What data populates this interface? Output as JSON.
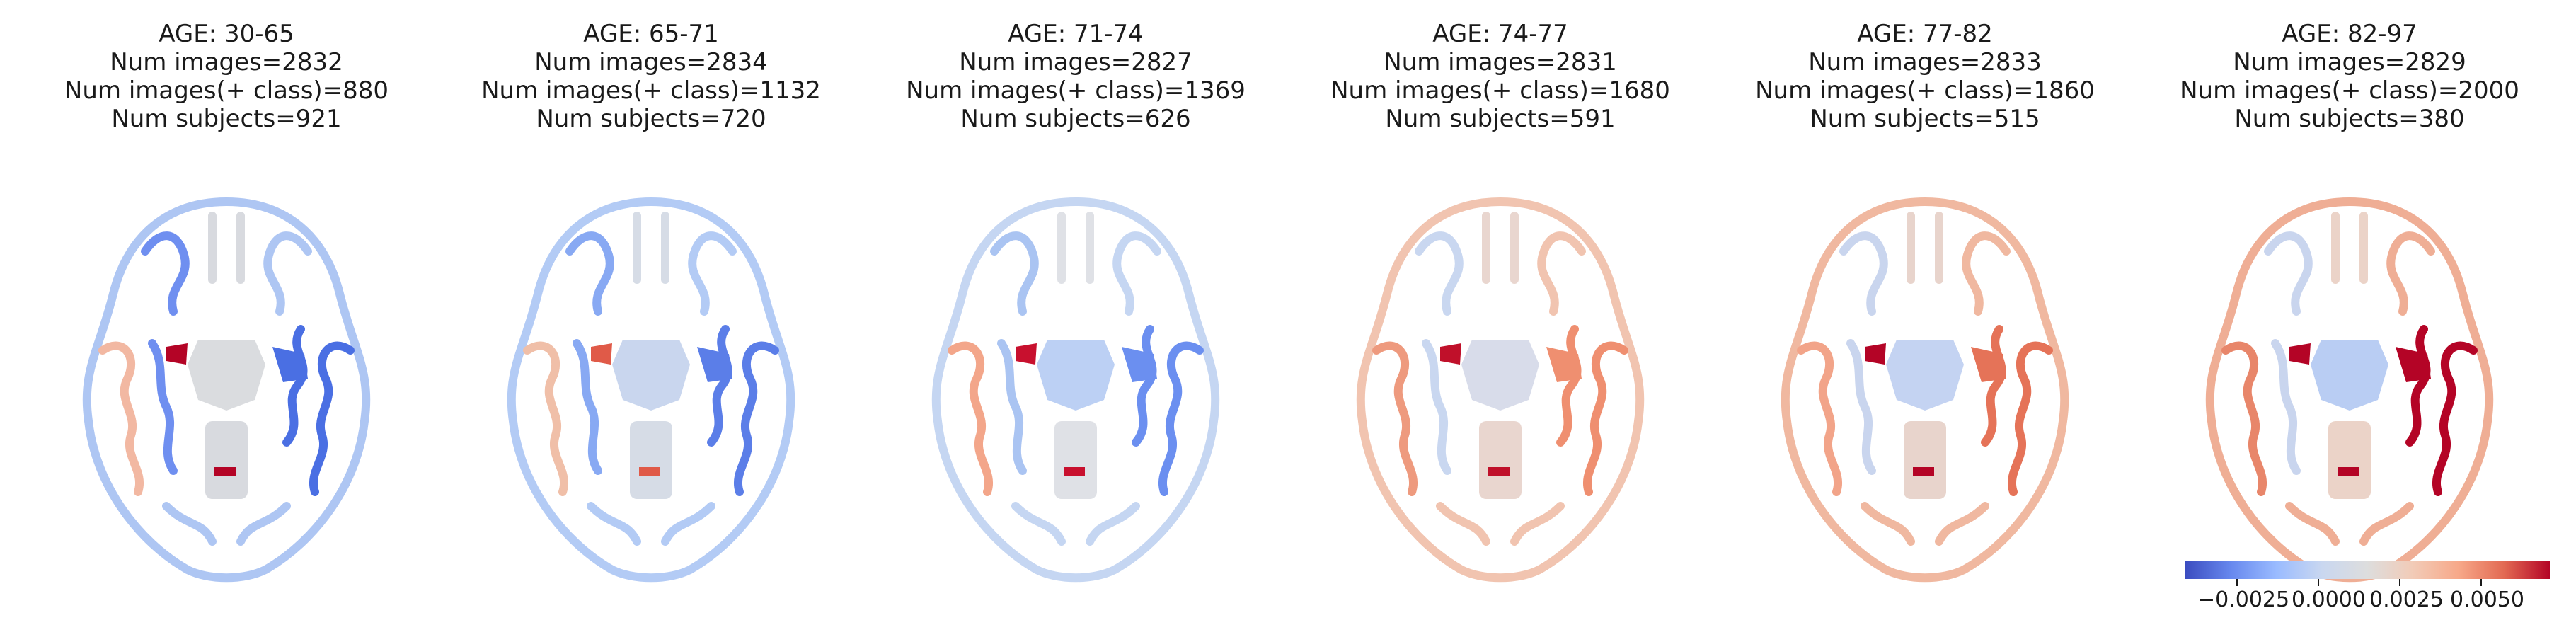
{
  "panels": [
    {
      "age": "AGE: 30-65",
      "num_images": "Num images=2832",
      "num_pos": "Num images(+ class)=880",
      "num_subjects": "Num subjects=921",
      "palette": {
        "gray": "#d8dadf",
        "ctx1": "#aec6f3",
        "ctx2": "#6f8ff0",
        "deep": "#dadcdf",
        "accent": "#4a6fe3",
        "hot": "#b40426",
        "warm": "#f2b8a2"
      }
    },
    {
      "age": "AGE: 65-71",
      "num_images": "Num images=2834",
      "num_pos": "Num images(+ class)=1132",
      "num_subjects": "Num subjects=720",
      "palette": {
        "gray": "#d6dce6",
        "ctx1": "#b3cbf5",
        "ctx2": "#88a9f3",
        "deep": "#c9d6ee",
        "accent": "#5b7ee8",
        "hot": "#e05a48",
        "warm": "#f0bfa8"
      }
    },
    {
      "age": "AGE: 71-74",
      "num_images": "Num images=2827",
      "num_pos": "Num images(+ class)=1369",
      "num_subjects": "Num subjects=626",
      "palette": {
        "gray": "#dfe1e6",
        "ctx1": "#c5d6f2",
        "ctx2": "#aac4f2",
        "deep": "#bcd0f4",
        "accent": "#6b8ff0",
        "hot": "#c8102e",
        "warm": "#f3a68a"
      }
    },
    {
      "age": "AGE: 74-77",
      "num_images": "Num images=2831",
      "num_pos": "Num images(+ class)=1680",
      "num_subjects": "Num subjects=591",
      "palette": {
        "gray": "#e9d6cf",
        "ctx1": "#f1c4b0",
        "ctx2": "#c9d7f0",
        "deep": "#d8dcea",
        "accent": "#ef8f70",
        "hot": "#c0102a",
        "warm": "#ee9a7e"
      }
    },
    {
      "age": "AGE: 77-82",
      "num_images": "Num images=2833",
      "num_pos": "Num images(+ class)=1860",
      "num_subjects": "Num subjects=515",
      "palette": {
        "gray": "#e8d4cc",
        "ctx1": "#f0b8a0",
        "ctx2": "#c9d5ee",
        "deep": "#c4d3f2",
        "accent": "#e57358",
        "hot": "#b40426",
        "warm": "#f2a489"
      }
    },
    {
      "age": "AGE: 82-97",
      "num_images": "Num images=2829",
      "num_pos": "Num images(+ class)=2000",
      "num_subjects": "Num subjects=380",
      "palette": {
        "gray": "#ebd3c8",
        "ctx1": "#efae95",
        "ctx2": "#c9d5ee",
        "deep": "#b9cdf3",
        "accent": "#b40426",
        "hot": "#b40426",
        "warm": "#e8866a"
      }
    }
  ],
  "colorbar": {
    "ticks": [
      "−0.0025",
      "0.0000",
      "0.0025",
      "0.0050"
    ],
    "colors": [
      "#3b4cc0",
      "#dddddd",
      "#b40426"
    ]
  }
}
